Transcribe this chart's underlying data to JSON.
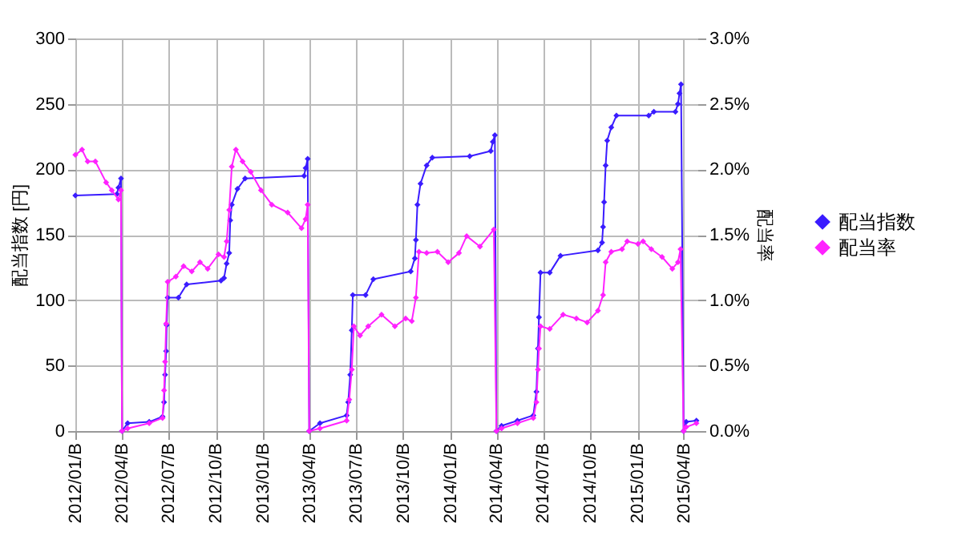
{
  "chart_data": {
    "type": "line",
    "ylabel": "配当指数 [円]",
    "y2label": "配当率",
    "grid": true,
    "legend": "right",
    "marker": "diamond",
    "xlim": [
      "2012-01-01",
      "2015-04-28"
    ],
    "xticks": [
      {
        "value": "2012-01-01",
        "label": "2012/01/B"
      },
      {
        "value": "2012-04-01",
        "label": "2012/04/B"
      },
      {
        "value": "2012-07-01",
        "label": "2012/07/B"
      },
      {
        "value": "2012-10-01",
        "label": "2012/10/B"
      },
      {
        "value": "2013-01-01",
        "label": "2013/01/B"
      },
      {
        "value": "2013-04-01",
        "label": "2013/04/B"
      },
      {
        "value": "2013-07-01",
        "label": "2013/07/B"
      },
      {
        "value": "2013-10-01",
        "label": "2013/10/B"
      },
      {
        "value": "2014-01-01",
        "label": "2014/01/B"
      },
      {
        "value": "2014-04-01",
        "label": "2014/04/B"
      },
      {
        "value": "2014-07-01",
        "label": "2014/07/B"
      },
      {
        "value": "2014-10-01",
        "label": "2014/10/B"
      },
      {
        "value": "2015-01-01",
        "label": "2015/01/B"
      },
      {
        "value": "2015-04-01",
        "label": "2015/04/B"
      }
    ],
    "ylim": [
      0,
      300
    ],
    "yticks": [
      0,
      50,
      100,
      150,
      200,
      250,
      300
    ],
    "y2lim": [
      0,
      3
    ],
    "y2ticks": [
      {
        "value": 0,
        "label": "0.0%"
      },
      {
        "value": 0.5,
        "label": "0.5%"
      },
      {
        "value": 1,
        "label": "1.0%"
      },
      {
        "value": 1.5,
        "label": "1.5%"
      },
      {
        "value": 2,
        "label": "2.0%"
      },
      {
        "value": 2.5,
        "label": "2.5%"
      },
      {
        "value": 3,
        "label": "3.0%"
      }
    ],
    "series": [
      {
        "name": "配当指数",
        "color": "#3a1cff",
        "x": [
          "2012-01-01",
          "2012-03-22",
          "2012-03-25",
          "2012-03-30",
          "2012-04-01",
          "2012-04-12",
          "2012-05-24",
          "2012-06-19",
          "2012-06-22",
          "2012-06-24",
          "2012-06-26",
          "2012-06-27",
          "2012-06-29",
          "2012-07-20",
          "2012-08-05",
          "2012-10-11",
          "2012-10-17",
          "2012-10-22",
          "2012-10-27",
          "2012-10-29",
          "2012-11-01",
          "2012-11-12",
          "2012-11-27",
          "2013-03-22",
          "2013-03-25",
          "2013-03-29",
          "2013-04-01",
          "2013-04-22",
          "2013-06-13",
          "2013-06-16",
          "2013-06-20",
          "2013-06-23",
          "2013-06-25",
          "2013-07-20",
          "2013-08-04",
          "2013-10-16",
          "2013-10-24",
          "2013-10-26",
          "2013-10-29",
          "2013-11-04",
          "2013-11-16",
          "2013-11-27",
          "2014-02-08",
          "2014-03-21",
          "2014-03-25",
          "2014-03-29",
          "2014-04-01",
          "2014-04-11",
          "2014-05-12",
          "2014-06-12",
          "2014-06-18",
          "2014-06-21",
          "2014-06-23",
          "2014-06-26",
          "2014-07-14",
          "2014-08-04",
          "2014-10-16",
          "2014-10-24",
          "2014-10-26",
          "2014-10-28",
          "2014-10-31",
          "2014-11-03",
          "2014-11-11",
          "2014-11-21",
          "2015-01-23",
          "2015-02-02",
          "2015-03-16",
          "2015-03-21",
          "2015-03-24",
          "2015-03-27",
          "2015-04-01",
          "2015-04-06",
          "2015-04-26"
        ],
        "values": [
          180,
          181,
          186,
          193,
          0,
          6,
          7,
          11,
          22,
          43,
          61,
          81,
          102,
          102,
          112,
          115,
          117,
          128,
          136,
          161,
          173,
          185,
          193,
          195,
          201,
          208,
          0,
          6,
          12,
          22,
          43,
          77,
          104,
          104,
          116,
          122,
          132,
          146,
          173,
          189,
          203,
          209,
          210,
          214,
          221,
          226,
          0,
          4,
          8,
          12,
          30,
          63,
          87,
          121,
          121,
          134,
          138,
          144,
          156,
          175,
          203,
          222,
          232,
          241,
          241,
          244,
          244,
          250,
          258,
          265,
          0,
          7,
          8
        ]
      },
      {
        "name": "配当率",
        "color": "#ff22ff",
        "axis": "y2",
        "x": [
          "2012-01-01",
          "2012-01-14",
          "2012-01-25",
          "2012-02-09",
          "2012-03-01",
          "2012-03-12",
          "2012-03-25",
          "2012-03-30",
          "2012-04-01",
          "2012-04-12",
          "2012-05-24",
          "2012-06-19",
          "2012-06-22",
          "2012-06-24",
          "2012-06-26",
          "2012-06-29",
          "2012-07-15",
          "2012-07-30",
          "2012-08-15",
          "2012-08-31",
          "2012-09-15",
          "2012-10-06",
          "2012-10-17",
          "2012-10-22",
          "2012-10-27",
          "2012-11-01",
          "2012-11-09",
          "2012-11-22",
          "2012-12-08",
          "2012-12-28",
          "2013-01-18",
          "2013-02-18",
          "2013-03-17",
          "2013-03-25",
          "2013-03-29",
          "2013-04-01",
          "2013-04-22",
          "2013-06-13",
          "2013-06-18",
          "2013-06-23",
          "2013-06-27",
          "2013-07-09",
          "2013-07-25",
          "2013-08-20",
          "2013-09-15",
          "2013-10-06",
          "2013-10-18",
          "2013-10-26",
          "2013-11-01",
          "2013-11-16",
          "2013-12-07",
          "2013-12-28",
          "2014-01-18",
          "2014-02-02",
          "2014-02-28",
          "2014-03-27",
          "2014-04-01",
          "2014-04-11",
          "2014-05-12",
          "2014-06-12",
          "2014-06-18",
          "2014-06-21",
          "2014-06-23",
          "2014-06-26",
          "2014-07-14",
          "2014-08-09",
          "2014-09-04",
          "2014-09-25",
          "2014-10-16",
          "2014-10-26",
          "2014-10-31",
          "2014-11-11",
          "2014-12-02",
          "2014-12-12",
          "2015-01-02",
          "2015-01-12",
          "2015-01-28",
          "2015-02-18",
          "2015-03-10",
          "2015-03-21",
          "2015-03-26",
          "2015-04-01",
          "2015-04-06",
          "2015-04-26"
        ],
        "values": [
          2.11,
          2.15,
          2.06,
          2.06,
          1.9,
          1.84,
          1.77,
          1.84,
          0,
          0.02,
          0.06,
          0.1,
          0.31,
          0.53,
          0.82,
          1.14,
          1.18,
          1.26,
          1.22,
          1.29,
          1.24,
          1.35,
          1.33,
          1.45,
          1.69,
          2.02,
          2.15,
          2.06,
          1.98,
          1.84,
          1.73,
          1.67,
          1.55,
          1.62,
          1.73,
          0,
          0.02,
          0.08,
          0.24,
          0.47,
          0.8,
          0.73,
          0.8,
          0.89,
          0.8,
          0.86,
          0.84,
          1.02,
          1.37,
          1.36,
          1.37,
          1.29,
          1.36,
          1.49,
          1.41,
          1.54,
          0,
          0.02,
          0.06,
          0.1,
          0.22,
          0.47,
          0.63,
          0.8,
          0.78,
          0.89,
          0.86,
          0.83,
          0.92,
          1.04,
          1.29,
          1.37,
          1.39,
          1.45,
          1.43,
          1.45,
          1.39,
          1.33,
          1.24,
          1.29,
          1.39,
          0,
          0.03,
          0.06
        ]
      }
    ]
  }
}
